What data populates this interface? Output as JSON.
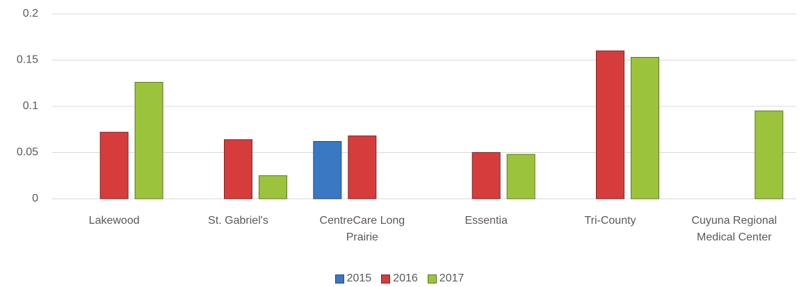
{
  "chart_data": {
    "type": "bar",
    "categories": [
      "Lakewood",
      "St. Gabriel's",
      "CentreCare Long Prairie",
      "Essentia",
      "Tri-County",
      "Cuyuna Regional Medical Center"
    ],
    "series": [
      {
        "name": "2015",
        "color": "#3a78c4",
        "values": [
          null,
          null,
          0.062,
          null,
          null,
          null
        ]
      },
      {
        "name": "2016",
        "color": "#d63c3c",
        "values": [
          0.072,
          0.064,
          0.068,
          0.05,
          0.16,
          null
        ]
      },
      {
        "name": "2017",
        "color": "#9cc33c",
        "values": [
          0.126,
          0.025,
          null,
          0.048,
          0.153,
          0.095
        ]
      }
    ],
    "ylim": [
      0,
      0.2
    ],
    "yticks": [
      0,
      0.05,
      0.1,
      0.15,
      0.2
    ],
    "grid": true,
    "legend": "bottom"
  }
}
